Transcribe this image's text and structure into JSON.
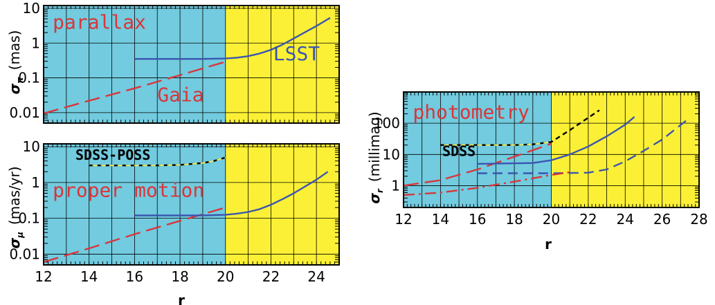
{
  "chart_data": [
    {
      "type": "line",
      "ylabel": "σπ (mas)",
      "ylabel_main": "σ",
      "ylabel_sub": "π",
      "ylabel_unit": "(mas)",
      "yscale": "log",
      "xlim": [
        12,
        25
      ],
      "ylim": [
        0.005,
        12
      ],
      "yticks": [
        "0.01",
        "0.1",
        "1",
        "10"
      ],
      "ytick_values": [
        0.01,
        0.1,
        1,
        10
      ],
      "grid": true,
      "regions": [
        {
          "from": 12,
          "to": 20,
          "color": "#72cbdf"
        },
        {
          "from": 20,
          "to": 25,
          "color": "#fbf035"
        }
      ],
      "annotations": [
        {
          "text": "parallax",
          "color": "#d9353a",
          "x": 12.4,
          "y": 2.6
        },
        {
          "text": "LSST",
          "color": "#3b55b0",
          "x": 22.1,
          "y": 0.32
        },
        {
          "text": "Gaia",
          "color": "#d9353a",
          "x": 17.0,
          "y": 0.021
        }
      ],
      "series": [
        {
          "color": "#d9353a",
          "dash": "long",
          "x": [
            12,
            14,
            16,
            18,
            20
          ],
          "y": [
            0.0095,
            0.022,
            0.05,
            0.12,
            0.29
          ]
        },
        {
          "color": "#3b55b0",
          "dash": "solid",
          "x": [
            16,
            19,
            20,
            20.5,
            21,
            21.5,
            22,
            22.5,
            23,
            23.5,
            24,
            24.6
          ],
          "y": [
            0.35,
            0.35,
            0.36,
            0.38,
            0.42,
            0.5,
            0.64,
            0.9,
            1.35,
            2.05,
            3.1,
            5.3
          ]
        }
      ]
    },
    {
      "type": "line",
      "ylabel": "σμ (mas/yr)",
      "ylabel_main": "σ",
      "ylabel_sub": "μ",
      "ylabel_unit": "(mas/yr)",
      "xlabel": "r",
      "yscale": "log",
      "xlim": [
        12,
        25
      ],
      "ylim": [
        0.005,
        12
      ],
      "xticks": [
        "12",
        "14",
        "16",
        "18",
        "20",
        "22",
        "24"
      ],
      "xtick_values": [
        12,
        14,
        16,
        18,
        20,
        22,
        24
      ],
      "yticks": [
        "0.01",
        "0.1",
        "1",
        "10"
      ],
      "ytick_values": [
        0.01,
        0.1,
        1,
        10
      ],
      "grid": true,
      "regions": [
        {
          "from": 12,
          "to": 20,
          "color": "#72cbdf"
        },
        {
          "from": 20,
          "to": 25,
          "color": "#fbf035"
        }
      ],
      "annotations": [
        {
          "text": "SDSS-POSS",
          "color": "#000000",
          "x": 13.4,
          "y": 4.3
        },
        {
          "text": "proper motion",
          "color": "#d9353a",
          "x": 12.4,
          "y": 0.4
        }
      ],
      "series": [
        {
          "color": "#000000",
          "dash": "short",
          "x": [
            14,
            16,
            17,
            18,
            19,
            19.5,
            20
          ],
          "y": [
            3.0,
            3.0,
            3.0,
            3.1,
            3.5,
            4.0,
            5.0
          ]
        },
        {
          "color": "#e8e85a",
          "dash": "short",
          "offset": true,
          "x": [
            14,
            16,
            17,
            18,
            19,
            19.5,
            20
          ],
          "y": [
            3.0,
            3.0,
            3.0,
            3.1,
            3.5,
            4.0,
            5.0
          ]
        },
        {
          "color": "#d9353a",
          "dash": "long",
          "x": [
            12,
            14,
            16,
            18,
            20
          ],
          "y": [
            0.006,
            0.0145,
            0.036,
            0.085,
            0.2
          ]
        },
        {
          "color": "#3b55b0",
          "dash": "solid",
          "x": [
            16,
            19,
            20,
            20.5,
            21,
            21.5,
            22,
            22.5,
            23,
            23.5,
            24,
            24.5
          ],
          "y": [
            0.12,
            0.12,
            0.125,
            0.135,
            0.15,
            0.18,
            0.24,
            0.34,
            0.5,
            0.77,
            1.2,
            2.0
          ]
        }
      ]
    },
    {
      "type": "line",
      "ylabel": "σr (millimag)",
      "ylabel_main": "σ",
      "ylabel_sub": "r",
      "ylabel_unit": "(millimag)",
      "xlabel": "r",
      "yscale": "log",
      "xlim": [
        12,
        28
      ],
      "ylim": [
        0.2,
        1000
      ],
      "xticks": [
        "12",
        "14",
        "16",
        "18",
        "20",
        "22",
        "24",
        "26",
        "28"
      ],
      "xtick_values": [
        12,
        14,
        16,
        18,
        20,
        22,
        24,
        26,
        28
      ],
      "yticks": [
        "1",
        "10",
        "100"
      ],
      "ytick_values": [
        1,
        10,
        100
      ],
      "grid": true,
      "regions": [
        {
          "from": 12,
          "to": 20,
          "color": "#72cbdf"
        },
        {
          "from": 20,
          "to": 28,
          "color": "#fbf035"
        }
      ],
      "annotations": [
        {
          "text": "photometry",
          "color": "#d9353a",
          "x": 12.5,
          "y": 140
        },
        {
          "text": "SDSS",
          "color": "#000000",
          "x": 14.1,
          "y": 9
        }
      ],
      "series": [
        {
          "color": "#000000",
          "dash": "short",
          "x": [
            14,
            18,
            19,
            20,
            21,
            22,
            22.6
          ],
          "y": [
            20,
            20,
            21,
            25,
            60,
            150,
            260
          ]
        },
        {
          "color": "#e8e85a",
          "dash": "short",
          "offset": true,
          "x": [
            14,
            18,
            19,
            20
          ],
          "y": [
            20,
            20,
            21,
            25
          ]
        },
        {
          "color": "#d9353a",
          "dash": "long",
          "x": [
            12,
            14,
            16,
            18,
            20
          ],
          "y": [
            1.0,
            1.5,
            3.3,
            8.5,
            22
          ]
        },
        {
          "color": "#3b55b0",
          "dash": "solid",
          "x": [
            16,
            19,
            20,
            21,
            22,
            23,
            24,
            24.5
          ],
          "y": [
            5,
            5.3,
            6.5,
            10,
            18,
            38,
            90,
            160
          ]
        },
        {
          "color": "#3b55b0",
          "dash": "medium",
          "x": [
            16,
            20,
            22,
            23,
            24,
            25,
            26,
            27.5
          ],
          "y": [
            2.5,
            2.5,
            2.6,
            3.3,
            6,
            13,
            30,
            150
          ]
        },
        {
          "color": "#d9353a",
          "dash": "dashdot",
          "x": [
            12,
            14,
            16,
            18,
            20,
            21
          ],
          "y": [
            0.5,
            0.6,
            0.85,
            1.35,
            2.2,
            2.7
          ]
        }
      ]
    }
  ]
}
